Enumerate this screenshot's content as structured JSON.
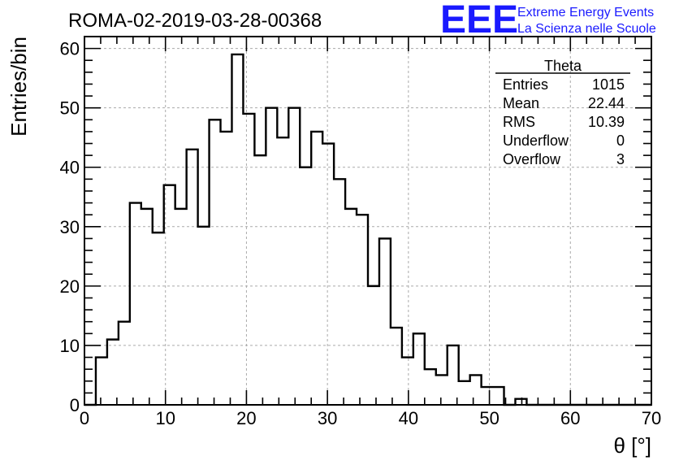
{
  "chart_data": {
    "type": "bar",
    "title": "ROMA-02-2019-03-28-00368",
    "xlabel": "θ [°]",
    "ylabel": "Entries/bin",
    "xlim": [
      0,
      70
    ],
    "ylim": [
      0,
      62
    ],
    "xticks": [
      0,
      10,
      20,
      30,
      40,
      50,
      60,
      70
    ],
    "yticks": [
      0,
      10,
      20,
      30,
      40,
      50,
      60
    ],
    "grid": true,
    "bin_width": 1.4,
    "bin_start": 0,
    "values": [
      0,
      8,
      11,
      14,
      34,
      33,
      29,
      37,
      33,
      43,
      30,
      48,
      46,
      59,
      49,
      42,
      50,
      45,
      50,
      40,
      46,
      44,
      38,
      33,
      32,
      20,
      28,
      13,
      8,
      12,
      6,
      5,
      10,
      4,
      5,
      3,
      3,
      0,
      1,
      0,
      0,
      0,
      0,
      0,
      0,
      0,
      0,
      0,
      0,
      0
    ],
    "stats": {
      "name": "Theta",
      "rows": [
        {
          "label": "Entries",
          "value": "1015"
        },
        {
          "label": "Mean",
          "value": "22.44"
        },
        {
          "label": "RMS",
          "value": "10.39"
        },
        {
          "label": "Underflow",
          "value": "0"
        },
        {
          "label": "Overflow",
          "value": "3"
        }
      ]
    }
  },
  "logo": {
    "mark": "EEE",
    "line1": "Extreme Energy Events",
    "line2": "La Scienza nelle Scuole",
    "color": "#1a1aff"
  }
}
